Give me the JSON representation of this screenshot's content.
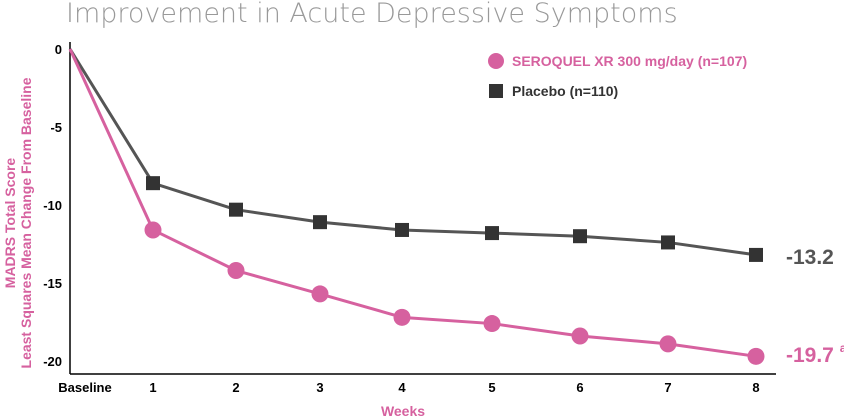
{
  "chart_data": {
    "type": "line",
    "title": "Improvement in Acute Depressive Symptoms",
    "xlabel": "Weeks",
    "ylabel_lines": [
      "MADRS Total Score",
      "Least Squares Mean Change From Baseline"
    ],
    "categories": [
      "Baseline",
      "1",
      "2",
      "3",
      "4",
      "5",
      "6",
      "7",
      "8"
    ],
    "y_ticks": [
      "0",
      "-5",
      "-10",
      "-15",
      "-20"
    ],
    "ylim": [
      -20,
      0
    ],
    "grid": false,
    "legend_position": "top-right",
    "series": [
      {
        "name": "SEROQUEL XR 300 mg/day (n=107)",
        "color": "#d6619f",
        "marker": "circle",
        "values": [
          0,
          -11.6,
          -14.2,
          -15.7,
          -17.2,
          -17.6,
          -18.4,
          -18.9,
          -19.7
        ],
        "end_label": "-19.7",
        "end_label_superscript": "a"
      },
      {
        "name": "Placebo (n=110)",
        "color": "#555555",
        "marker": "square",
        "values": [
          0,
          -8.6,
          -10.3,
          -11.1,
          -11.6,
          -11.8,
          -12.0,
          -12.4,
          -13.2
        ],
        "end_label": "-13.2"
      }
    ]
  }
}
